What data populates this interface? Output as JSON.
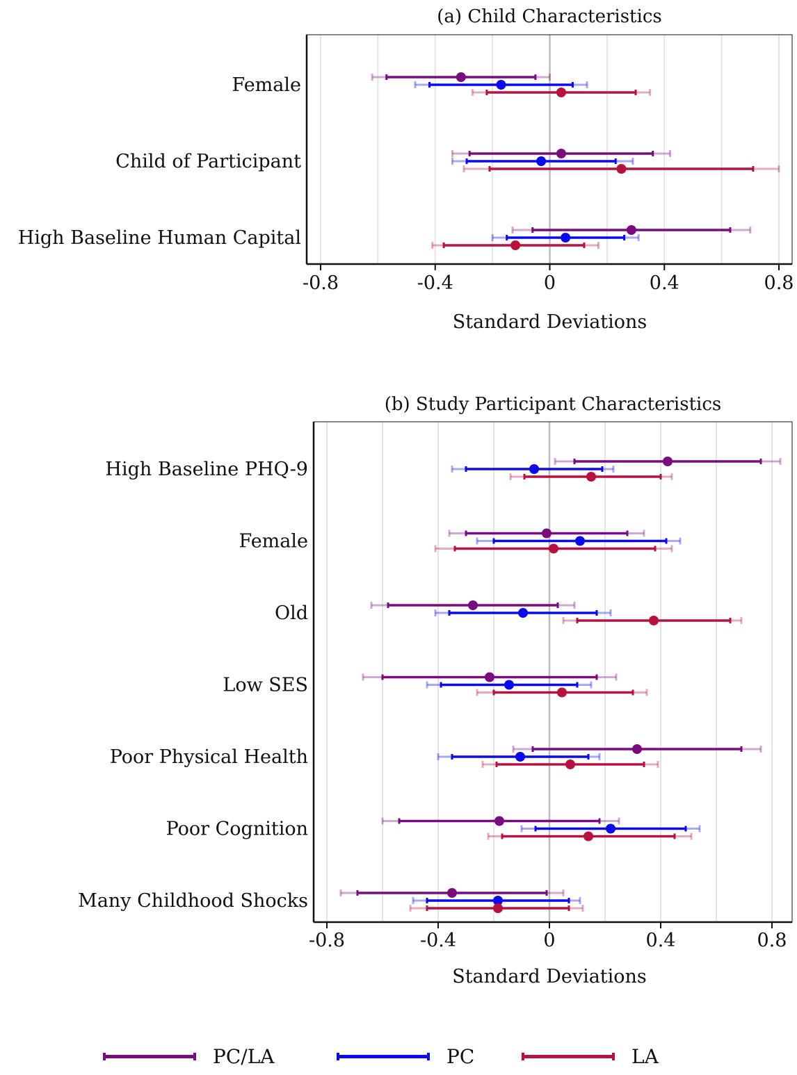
{
  "colors": {
    "pcla": "#7a0b7e",
    "pc": "#0a0af0",
    "la": "#b8103f",
    "grid": "#e5e5e5",
    "zero": "#bdbdbd",
    "axis": "#111111"
  },
  "legend": [
    {
      "key": "pcla",
      "label": "PC/LA"
    },
    {
      "key": "pc",
      "label": "PC"
    },
    {
      "key": "la",
      "label": "LA"
    }
  ],
  "chart_data": [
    {
      "type": "coefficient-plot",
      "title": "(a) Child Characteristics",
      "xlabel": "Standard Deviations",
      "xlim": [
        -0.8,
        0.8
      ],
      "xticks": [
        -0.8,
        -0.4,
        0,
        0.4,
        0.8
      ],
      "xtick_labels": [
        "-0.8",
        "-0.4",
        "0",
        "0.4",
        "0.8"
      ],
      "grid": true,
      "categories": [
        "Female",
        "Child of Participant",
        "High Baseline Human Capital"
      ],
      "series": [
        {
          "name": "PC/LA",
          "key": "pcla",
          "points": [
            {
              "category": "Female",
              "est": -0.31,
              "ci90": [
                -0.57,
                -0.05
              ],
              "ci95": [
                -0.62,
                0.0
              ]
            },
            {
              "category": "Child of Participant",
              "est": 0.04,
              "ci90": [
                -0.28,
                0.36
              ],
              "ci95": [
                -0.34,
                0.42
              ]
            },
            {
              "category": "High Baseline Human Capital",
              "est": 0.285,
              "ci90": [
                -0.06,
                0.63
              ],
              "ci95": [
                -0.13,
                0.7
              ]
            }
          ]
        },
        {
          "name": "PC",
          "key": "pc",
          "points": [
            {
              "category": "Female",
              "est": -0.17,
              "ci90": [
                -0.42,
                0.08
              ],
              "ci95": [
                -0.47,
                0.13
              ]
            },
            {
              "category": "Child of Participant",
              "est": -0.03,
              "ci90": [
                -0.29,
                0.23
              ],
              "ci95": [
                -0.34,
                0.29
              ]
            },
            {
              "category": "High Baseline Human Capital",
              "est": 0.055,
              "ci90": [
                -0.15,
                0.26
              ],
              "ci95": [
                -0.2,
                0.31
              ]
            }
          ]
        },
        {
          "name": "LA",
          "key": "la",
          "points": [
            {
              "category": "Female",
              "est": 0.04,
              "ci90": [
                -0.22,
                0.3
              ],
              "ci95": [
                -0.27,
                0.35
              ]
            },
            {
              "category": "Child of Participant",
              "est": 0.25,
              "ci90": [
                -0.21,
                0.71
              ],
              "ci95": [
                -0.3,
                0.8
              ]
            },
            {
              "category": "High Baseline Human Capital",
              "est": -0.12,
              "ci90": [
                -0.37,
                0.12
              ],
              "ci95": [
                -0.41,
                0.17
              ]
            }
          ]
        }
      ]
    },
    {
      "type": "coefficient-plot",
      "title": "(b) Study Participant Characteristics",
      "xlabel": "Standard Deviations",
      "xlim": [
        -0.8,
        0.8
      ],
      "xticks": [
        -0.8,
        -0.4,
        0,
        0.4,
        0.8
      ],
      "xtick_labels": [
        "-0.8",
        "-0.4",
        "0",
        "0.4",
        "0.8"
      ],
      "grid": true,
      "categories": [
        "High Baseline PHQ-9",
        "Female",
        "Old",
        "Low SES",
        "Poor Physical Health",
        "Poor Cognition",
        "Many Childhood Shocks"
      ],
      "series": [
        {
          "name": "PC/LA",
          "key": "pcla",
          "points": [
            {
              "category": "High Baseline PHQ-9",
              "est": 0.425,
              "ci90": [
                0.09,
                0.76
              ],
              "ci95": [
                0.02,
                0.83
              ]
            },
            {
              "category": "Female",
              "est": -0.01,
              "ci90": [
                -0.3,
                0.28
              ],
              "ci95": [
                -0.36,
                0.34
              ]
            },
            {
              "category": "Old",
              "est": -0.275,
              "ci90": [
                -0.58,
                0.03
              ],
              "ci95": [
                -0.64,
                0.09
              ]
            },
            {
              "category": "Low SES",
              "est": -0.215,
              "ci90": [
                -0.6,
                0.17
              ],
              "ci95": [
                -0.67,
                0.24
              ]
            },
            {
              "category": "Poor Physical Health",
              "est": 0.315,
              "ci90": [
                -0.06,
                0.69
              ],
              "ci95": [
                -0.13,
                0.76
              ]
            },
            {
              "category": "Poor Cognition",
              "est": -0.18,
              "ci90": [
                -0.54,
                0.18
              ],
              "ci95": [
                -0.6,
                0.25
              ]
            },
            {
              "category": "Many Childhood Shocks",
              "est": -0.35,
              "ci90": [
                -0.69,
                -0.01
              ],
              "ci95": [
                -0.75,
                0.05
              ]
            }
          ]
        },
        {
          "name": "PC",
          "key": "pc",
          "points": [
            {
              "category": "High Baseline PHQ-9",
              "est": -0.055,
              "ci90": [
                -0.3,
                0.19
              ],
              "ci95": [
                -0.35,
                0.23
              ]
            },
            {
              "category": "Female",
              "est": 0.11,
              "ci90": [
                -0.2,
                0.42
              ],
              "ci95": [
                -0.26,
                0.47
              ]
            },
            {
              "category": "Old",
              "est": -0.095,
              "ci90": [
                -0.36,
                0.17
              ],
              "ci95": [
                -0.41,
                0.22
              ]
            },
            {
              "category": "Low SES",
              "est": -0.145,
              "ci90": [
                -0.39,
                0.1
              ],
              "ci95": [
                -0.44,
                0.15
              ]
            },
            {
              "category": "Poor Physical Health",
              "est": -0.105,
              "ci90": [
                -0.35,
                0.14
              ],
              "ci95": [
                -0.4,
                0.18
              ]
            },
            {
              "category": "Poor Cognition",
              "est": 0.22,
              "ci90": [
                -0.05,
                0.49
              ],
              "ci95": [
                -0.1,
                0.54
              ]
            },
            {
              "category": "Many Childhood Shocks",
              "est": -0.185,
              "ci90": [
                -0.44,
                0.07
              ],
              "ci95": [
                -0.49,
                0.11
              ]
            }
          ]
        },
        {
          "name": "LA",
          "key": "la",
          "points": [
            {
              "category": "High Baseline PHQ-9",
              "est": 0.15,
              "ci90": [
                -0.09,
                0.4
              ],
              "ci95": [
                -0.14,
                0.44
              ]
            },
            {
              "category": "Female",
              "est": 0.015,
              "ci90": [
                -0.34,
                0.38
              ],
              "ci95": [
                -0.41,
                0.44
              ]
            },
            {
              "category": "Old",
              "est": 0.375,
              "ci90": [
                0.1,
                0.65
              ],
              "ci95": [
                0.05,
                0.69
              ]
            },
            {
              "category": "Low SES",
              "est": 0.045,
              "ci90": [
                -0.2,
                0.3
              ],
              "ci95": [
                -0.26,
                0.35
              ]
            },
            {
              "category": "Poor Physical Health",
              "est": 0.075,
              "ci90": [
                -0.19,
                0.34
              ],
              "ci95": [
                -0.24,
                0.39
              ]
            },
            {
              "category": "Poor Cognition",
              "est": 0.14,
              "ci90": [
                -0.17,
                0.45
              ],
              "ci95": [
                -0.22,
                0.51
              ]
            },
            {
              "category": "Many Childhood Shocks",
              "est": -0.185,
              "ci90": [
                -0.44,
                0.07
              ],
              "ci95": [
                -0.5,
                0.12
              ]
            }
          ]
        }
      ]
    }
  ]
}
